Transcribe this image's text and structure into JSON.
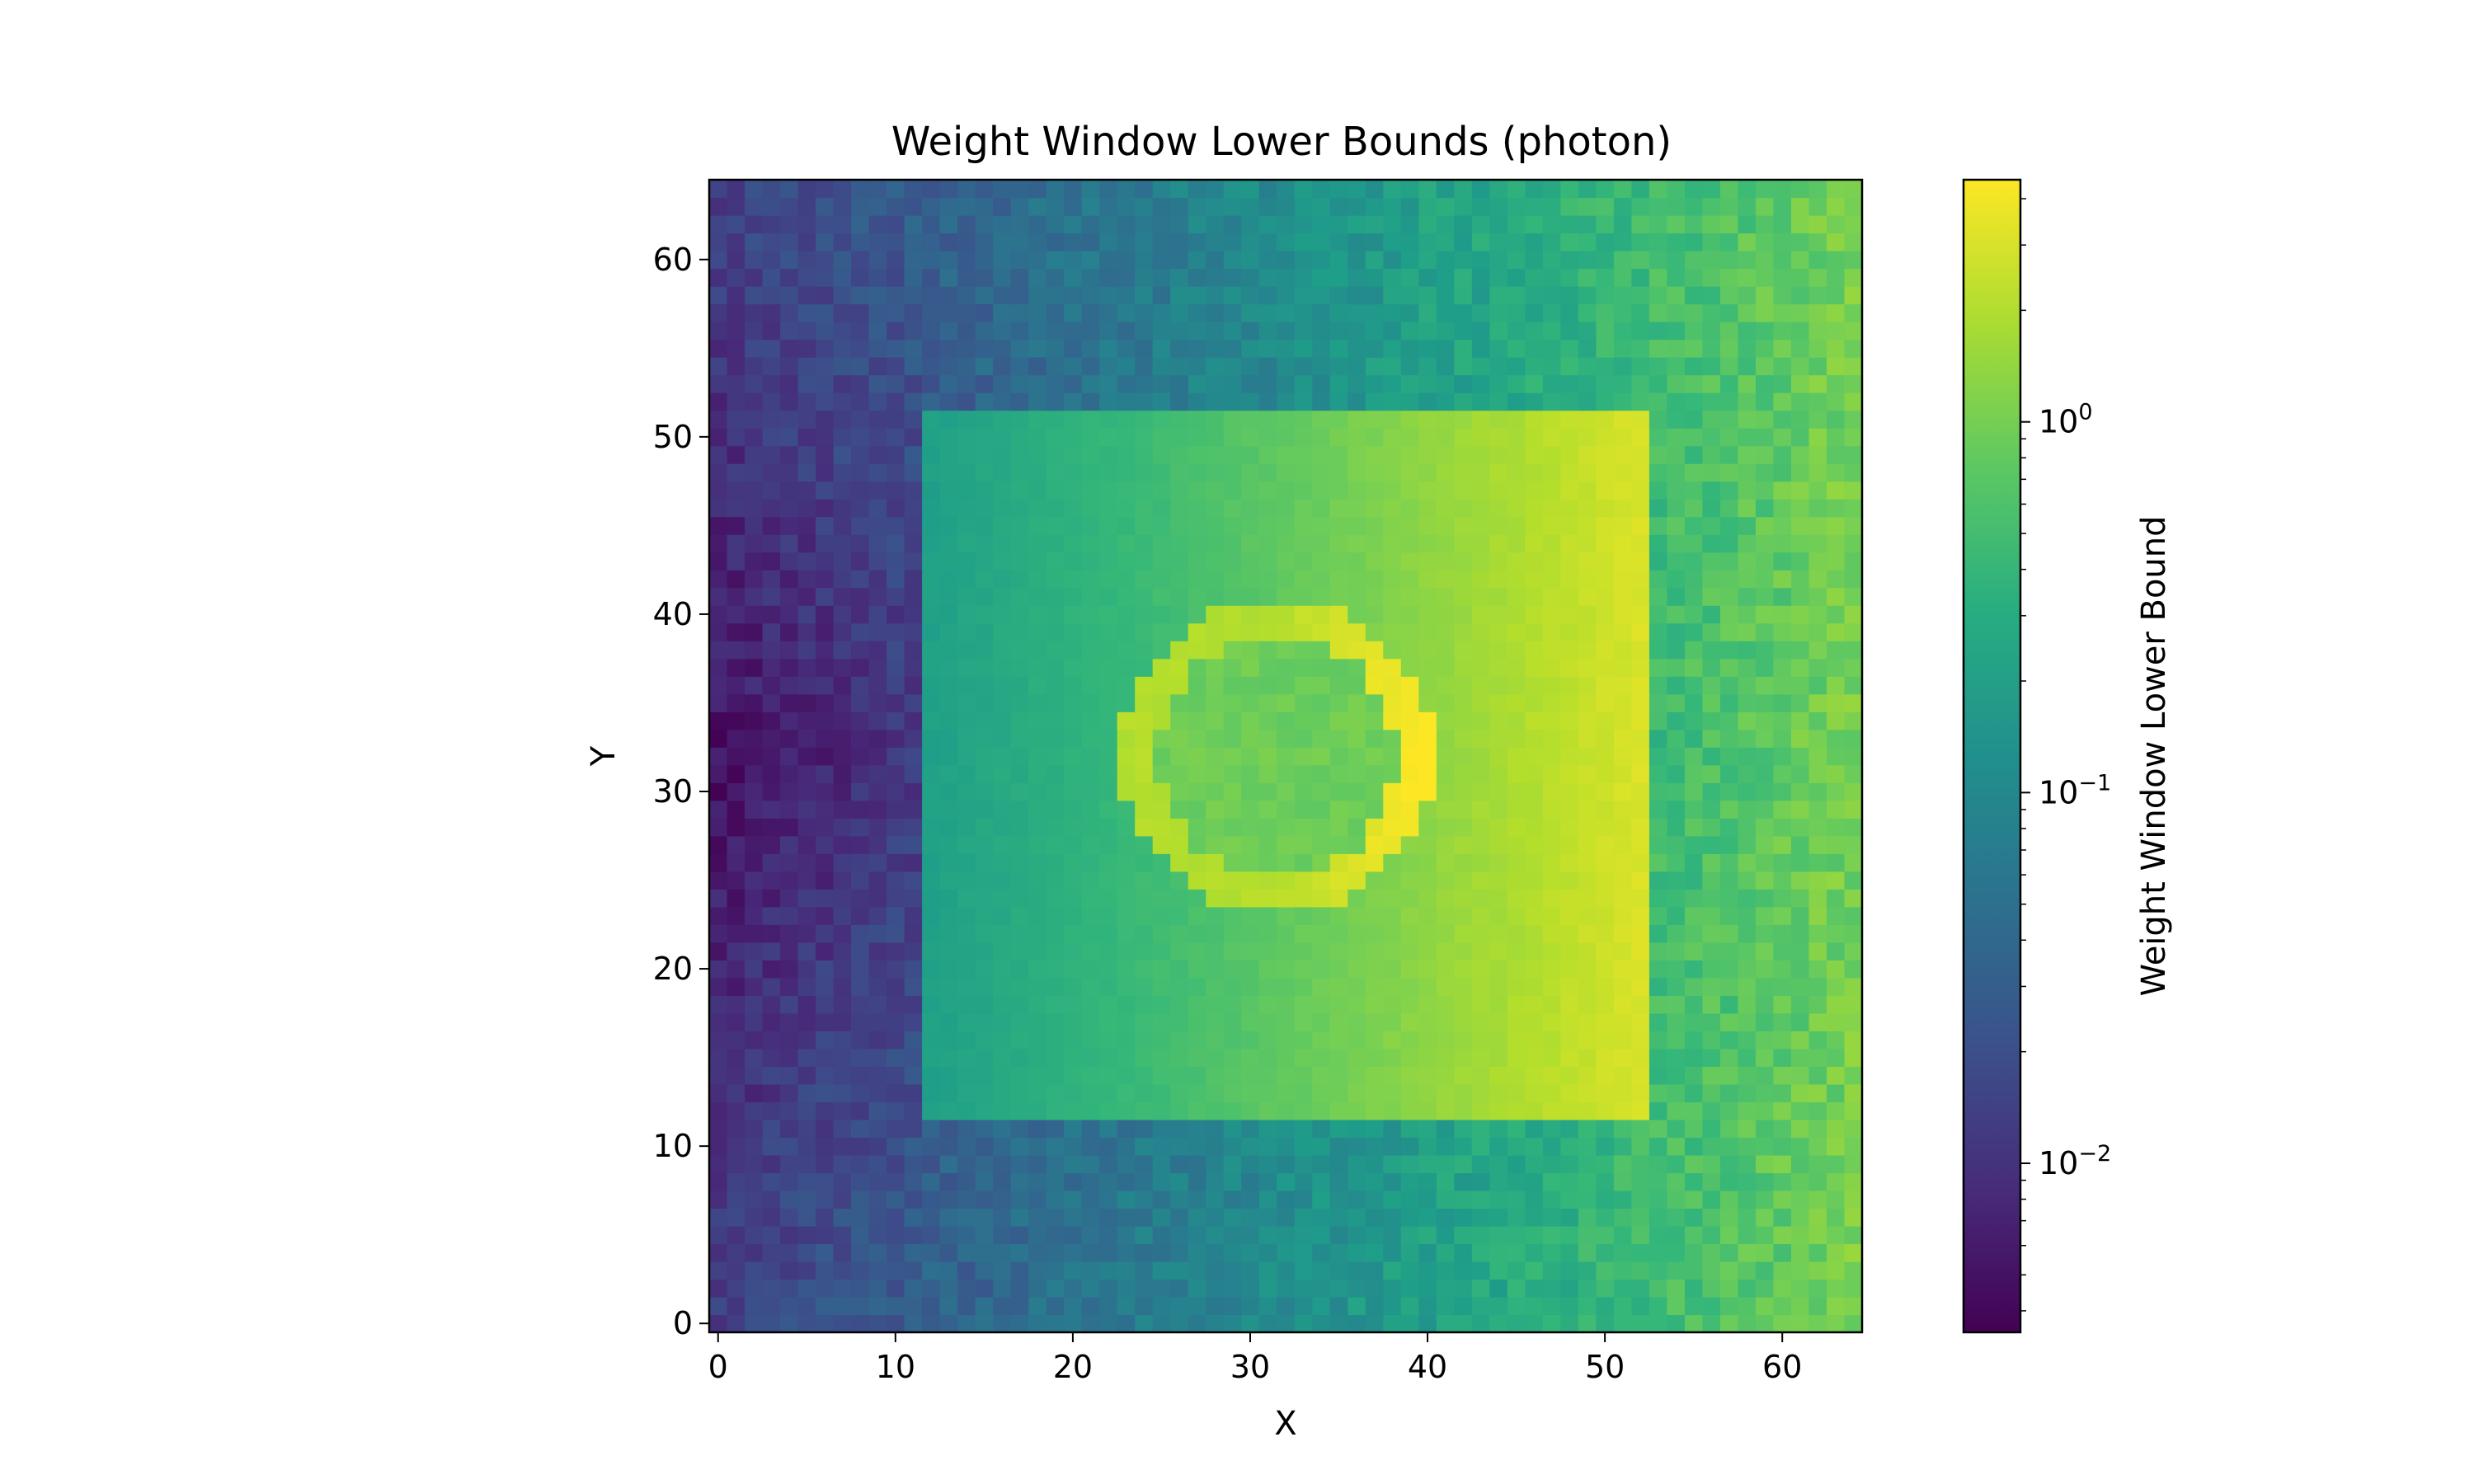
{
  "chart_data": {
    "type": "heatmap",
    "title": "Weight Window Lower Bounds (photon)",
    "xlabel": "X",
    "ylabel": "Y",
    "xlim": [
      -0.5,
      64.5
    ],
    "ylim": [
      -0.5,
      64.5
    ],
    "x_ticks": [
      0,
      10,
      20,
      30,
      40,
      50,
      60
    ],
    "y_ticks": [
      0,
      10,
      20,
      30,
      40,
      50,
      60
    ],
    "grid_size": [
      65,
      65
    ],
    "colormap": "viridis",
    "color_scale": "log",
    "colorbar": {
      "label": "Weight Window Lower Bound",
      "range": [
        0.0035,
        4.5
      ],
      "major_ticks": [
        0.01,
        0.1,
        1
      ],
      "major_tick_labels": [
        {
          "base": "10",
          "exp": "−2"
        },
        {
          "base": "10",
          "exp": "−1"
        },
        {
          "base": "10",
          "exp": "0"
        }
      ]
    },
    "regions": {
      "outer_left_band": {
        "x_range": [
          0,
          11
        ],
        "value_range": [
          0.005,
          0.015
        ]
      },
      "inner_box": {
        "x_range": [
          12,
          52
        ],
        "y_range": [
          12,
          51
        ],
        "value_left": 0.2,
        "value_right": 3.0
      },
      "circle": {
        "center": [
          31.5,
          32
        ],
        "radius": 8,
        "interior_value": 0.9,
        "rim_max_value": 4.5
      },
      "outer_right_band": {
        "x_range": [
          53,
          64
        ],
        "value_range": [
          0.4,
          1.2
        ]
      }
    }
  }
}
